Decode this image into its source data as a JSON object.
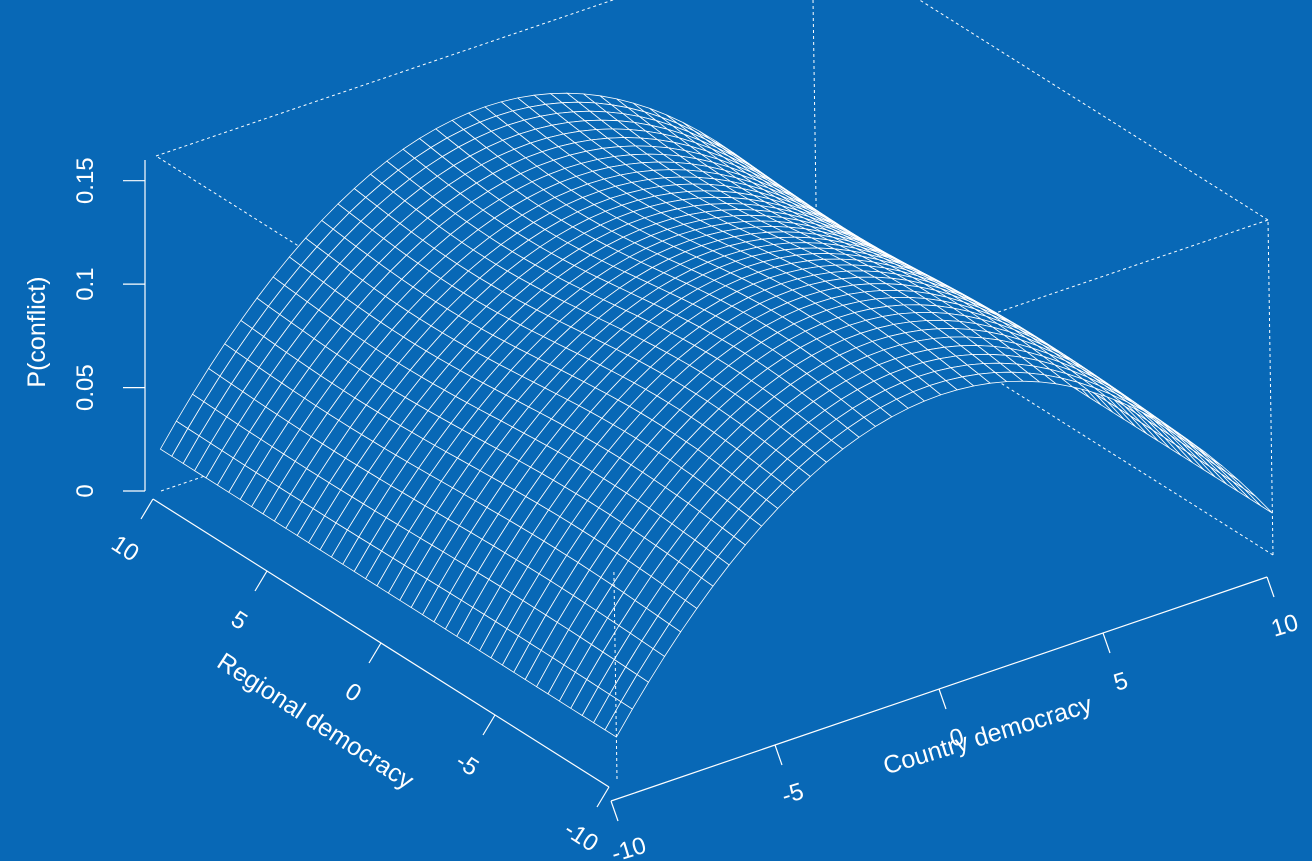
{
  "background_color": "#0868B6",
  "line_color": "#ffffff",
  "chart_data": {
    "type": "surface",
    "title": "",
    "xlabel": "Country democracy",
    "ylabel": "Regional democracy",
    "zlabel": "P(conflict)",
    "x_ticks": [
      "-10",
      "-5",
      "0",
      "5",
      "10"
    ],
    "y_ticks": [
      "-10",
      "-5",
      "0",
      "5",
      "10"
    ],
    "z_ticks": [
      "0",
      "0.05",
      "0.1",
      "0.15"
    ],
    "xlim": [
      -10,
      10
    ],
    "ylim": [
      -10,
      10
    ],
    "zlim": [
      0,
      0.16
    ],
    "grid_resolution": 41,
    "surface_description": "Inverted-U in country democracy, peak near x=0",
    "z_at_corners": {
      "x-10_y-10": 0.02,
      "x10_y-10": 0.02,
      "x-10_y10": 0.02,
      "x10_y10": 0.02
    },
    "z_peak": 0.13,
    "box": "dashed",
    "grid": false
  }
}
